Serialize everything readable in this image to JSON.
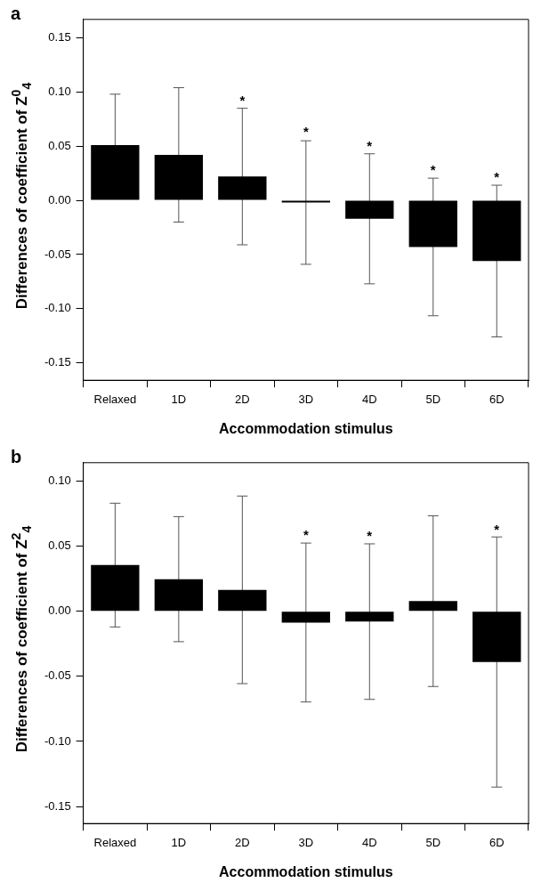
{
  "chart_data": [
    {
      "type": "bar",
      "title": "a",
      "xlabel": "Accommodation stimulus",
      "ylabel": "Differences of coefficient of  Z$^{0}$$_{4}$",
      "categories": [
        "Relaxed",
        "1D",
        "2D",
        "3D",
        "4D",
        "5D",
        "6D"
      ],
      "color": "#000000",
      "values": [
        0.051,
        0.042,
        0.022,
        -0.002,
        -0.017,
        -0.043,
        -0.056
      ],
      "errors": [
        0.047,
        0.062,
        0.063,
        0.057,
        0.06,
        0.0635,
        0.07
      ],
      "ylim": [
        -0.166,
        0.167
      ],
      "yticks": [
        {
          "value": -0.15,
          "label": "-0.15"
        },
        {
          "value": -0.1,
          "label": "-0.10"
        },
        {
          "value": -0.05,
          "label": "-0.05"
        },
        {
          "value": 0,
          "label": "0.00"
        },
        {
          "value": 0.05,
          "label": "0.05"
        },
        {
          "value": 0.1,
          "label": "0.10"
        },
        {
          "value": 0.15,
          "label": "0.15"
        }
      ],
      "grid": false,
      "legend": false,
      "annotations": [
        {
          "text": "*",
          "x": "2D",
          "y": 0.085
        },
        {
          "text": "*",
          "x": "3D",
          "y": 0.056
        },
        {
          "text": "*",
          "x": "4D",
          "y": 0.043
        },
        {
          "text": "*",
          "x": "5D",
          "y": 0.0205
        },
        {
          "text": "*",
          "x": "6D",
          "y": 0.014
        }
      ]
    },
    {
      "type": "bar",
      "title": "b",
      "xlabel": "Accommodation stimulus",
      "ylabel": "Differences of coefficient of  Z$^{2}$$_{4}$",
      "categories": [
        "Relaxed",
        "1D",
        "2D",
        "3D",
        "4D",
        "5D",
        "6D"
      ],
      "color": "#000000",
      "values": [
        0.0354,
        0.0246,
        0.0164,
        -0.0087,
        -0.008,
        0.0077,
        -0.039
      ],
      "errors": [
        0.0475,
        0.048,
        0.072,
        0.061,
        0.0597,
        0.0655,
        0.096
      ],
      "ylim": [
        -0.163,
        0.114
      ],
      "yticks": [
        {
          "value": -0.15,
          "label": "-0.15"
        },
        {
          "value": -0.1,
          "label": "-0.10"
        },
        {
          "value": -0.05,
          "label": "-0.05"
        },
        {
          "value": 0,
          "label": "0.00"
        },
        {
          "value": 0.05,
          "label": "0.05"
        },
        {
          "value": 0.1,
          "label": "0.10"
        }
      ],
      "grid": false,
      "legend": false,
      "annotations": [
        {
          "text": "*",
          "x": "3D",
          "y": 0.0523
        },
        {
          "text": "*",
          "x": "4D",
          "y": 0.0518
        },
        {
          "text": "*",
          "x": "6D",
          "y": 0.0567
        }
      ]
    }
  ]
}
